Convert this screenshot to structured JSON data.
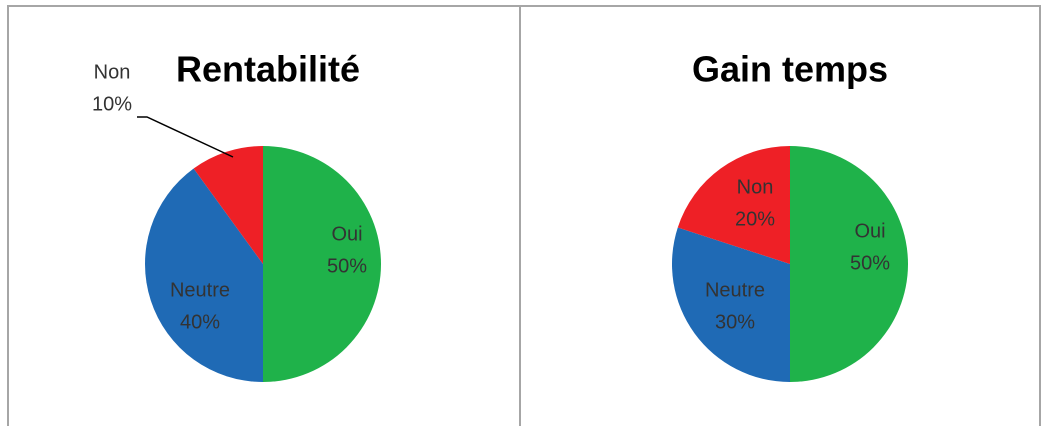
{
  "chart_data": [
    {
      "type": "pie",
      "title": "Rentabilité",
      "categories": [
        "Oui",
        "Neutre",
        "Non"
      ],
      "values": [
        50,
        40,
        10
      ],
      "value_labels": [
        "50%",
        "40%",
        "10%"
      ],
      "colors": [
        "#1fb24a",
        "#1f6ab5",
        "#ee2026"
      ]
    },
    {
      "type": "pie",
      "title": "Gain temps",
      "categories": [
        "Oui",
        "Neutre",
        "Non"
      ],
      "values": [
        50,
        30,
        20
      ],
      "value_labels": [
        "50%",
        "30%",
        "20%"
      ],
      "colors": [
        "#1fb24a",
        "#1f6ab5",
        "#ee2026"
      ]
    }
  ]
}
